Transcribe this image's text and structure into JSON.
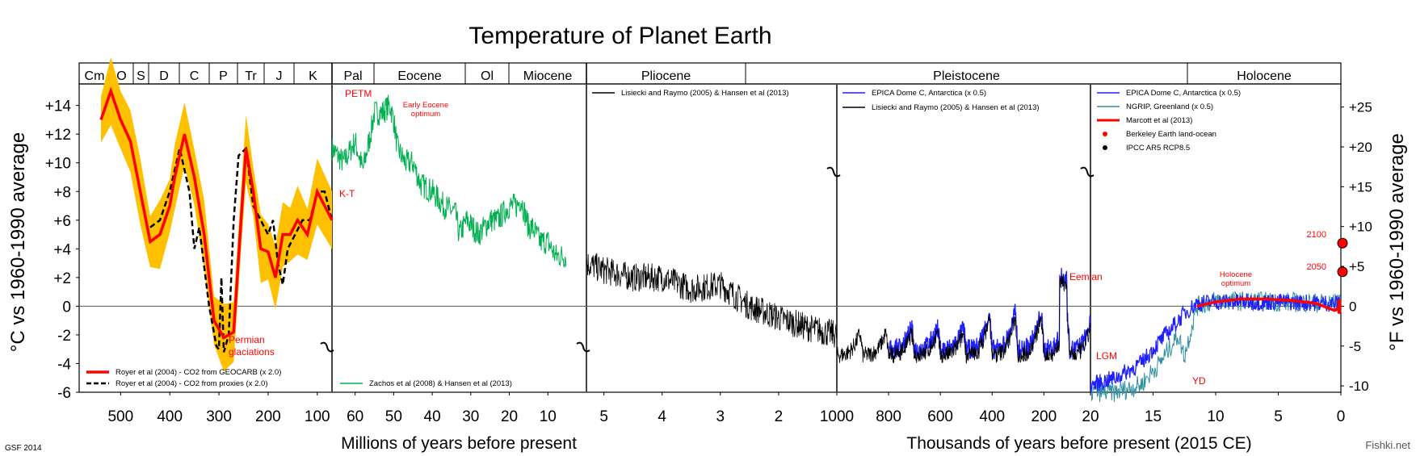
{
  "title": "Temperature of Planet Earth",
  "credit_left": "GSF 2014",
  "watermark": "Fishki.net",
  "axes": {
    "left_label": "°C vs 1960-1990 average",
    "right_label": "°F vs 1960-1990 average",
    "left_ticks": [
      "+14",
      "+12",
      "+10",
      "+8",
      "+6",
      "+4",
      "+2",
      "0",
      "-2",
      "-4",
      "-6"
    ],
    "left_values": [
      14,
      12,
      10,
      8,
      6,
      4,
      2,
      0,
      -2,
      -4,
      -6
    ],
    "right_ticks": [
      "+25",
      "+20",
      "+15",
      "+10",
      "+5",
      "0",
      "-5",
      "-10"
    ],
    "right_values_c": [
      13.889,
      11.111,
      8.333,
      5.556,
      2.778,
      0,
      -2.778,
      -5.556
    ],
    "ylim": [
      -6,
      15.5
    ],
    "xlabel_left": "Millions of years before present",
    "xlabel_right": "Thousands of years before present (2015 CE)"
  },
  "periods": [
    {
      "label": "Cm"
    },
    {
      "label": "O"
    },
    {
      "label": "S"
    },
    {
      "label": "D"
    },
    {
      "label": "C"
    },
    {
      "label": "P"
    },
    {
      "label": "Tr"
    },
    {
      "label": "J"
    },
    {
      "label": "K"
    },
    {
      "label": "Pal"
    },
    {
      "label": "Eocene"
    },
    {
      "label": "Ol"
    },
    {
      "label": "Miocene"
    },
    {
      "label": "Pliocene"
    },
    {
      "label": "Pleistocene"
    },
    {
      "label": "Holocene"
    }
  ],
  "x_ticks": {
    "panel1": [
      "500",
      "400",
      "300",
      "200",
      "100"
    ],
    "panel2": [
      "60",
      "50",
      "40",
      "30",
      "20",
      "10"
    ],
    "panel3": [
      "5",
      "4",
      "3",
      "2",
      "1000"
    ],
    "panel4": [
      "800",
      "600",
      "400",
      "200",
      "20"
    ],
    "panel5": [
      "15",
      "10",
      "5",
      "0"
    ]
  },
  "legends": {
    "panel1": [
      {
        "label": "Royer et al (2004) - CO2 from GEOCARB (x 2.0)",
        "color": "#ff0000",
        "style": "solid"
      },
      {
        "label": "Royer et al (2004) - CO2 from proxies (x 2.0)",
        "color": "#000000",
        "style": "dashed"
      }
    ],
    "panel2": [
      {
        "label": "Zachos et al (2008) & Hansen et al (2013)",
        "color": "#00b050",
        "style": "solid"
      }
    ],
    "panel3": [
      {
        "label": "Lisiecki and Raymo (2005) & Hansen et al (2013)",
        "color": "#000000",
        "style": "solid"
      }
    ],
    "panel4": [
      {
        "label": "EPICA Dome C, Antarctica  (x 0.5)",
        "color": "#2020ff",
        "style": "solid"
      },
      {
        "label": "Lisiecki and Raymo (2005) & Hansen et al (2013)",
        "color": "#000000",
        "style": "solid"
      }
    ],
    "panel5": [
      {
        "label": "EPICA Dome C, Antarctica  (x 0.5)",
        "color": "#2020ff",
        "style": "solid"
      },
      {
        "label": "NGRIP, Greenland (x 0.5)",
        "color": "#3090a0",
        "style": "solid"
      },
      {
        "label": "Marcott et al (2013)",
        "color": "#ff0000",
        "style": "thick"
      },
      {
        "label": "Berkeley Earth land-ocean",
        "color": "#ff0000",
        "style": "dot"
      },
      {
        "label": "IPCC AR5 RCP8.5",
        "color": "#000000",
        "style": "dot"
      }
    ]
  },
  "annotations": {
    "permian": "Permian\nglaciations",
    "petm": "PETM",
    "early_eocene": "Early Eocene\noptimum",
    "kt": "K-T",
    "eemian": "Eemian",
    "lgm": "LGM",
    "yd": "YD",
    "holocene_opt": "Holocene\noptimum",
    "y2100": "2100",
    "y2050": "2050"
  },
  "colors": {
    "red": "#ff0000",
    "orange_band": "#ffc000",
    "green": "#00b050",
    "blue": "#2020ff",
    "teal": "#3090a0",
    "annot_red": "#ff0000"
  },
  "chart_data": {
    "type": "line",
    "title": "Temperature of Planet Earth",
    "ylabel": "°C vs 1960-1990 average",
    "ylim": [
      -6,
      15
    ],
    "series": [
      {
        "name": "Royer et al (2004) - CO2 from GEOCARB (x 2.0)",
        "x_unit": "Ma",
        "x": [
          540,
          520,
          500,
          480,
          460,
          440,
          420,
          400,
          390,
          370,
          350,
          330,
          310,
          290,
          270,
          255,
          245,
          230,
          215,
          200,
          185,
          170,
          155,
          140,
          120,
          100,
          85,
          70
        ],
        "values": [
          13,
          15,
          13,
          11.5,
          8,
          4.5,
          5,
          7,
          9,
          12,
          9,
          5,
          -1,
          -2.2,
          -1.8,
          6,
          11,
          8,
          4,
          3.8,
          2,
          5,
          5,
          6,
          5,
          8,
          7,
          6
        ]
      },
      {
        "name": "Royer et al (2004) - CO2 from proxies (x 2.0)",
        "x_unit": "Ma",
        "x": [
          440,
          420,
          400,
          380,
          360,
          350,
          340,
          320,
          305,
          300,
          295,
          290,
          280,
          270,
          260,
          245,
          230,
          215,
          200,
          190,
          180,
          170,
          160,
          145,
          130,
          115,
          100,
          85,
          70
        ],
        "values": [
          5.5,
          6,
          8,
          11,
          8,
          4,
          5.5,
          0,
          -2.8,
          -3,
          2,
          -3.2,
          -2,
          6,
          10.5,
          11,
          7,
          6,
          5,
          6,
          3,
          1.5,
          4,
          5,
          6,
          6,
          8,
          8,
          6
        ]
      },
      {
        "name": "Zachos et al (2008) & Hansen et al (2013)",
        "x_unit": "Ma",
        "x": [
          66,
          63,
          60,
          58,
          56,
          55,
          53,
          51,
          50,
          49,
          47,
          45,
          43,
          40,
          37,
          34,
          33,
          31,
          28,
          25,
          23,
          20,
          18,
          17,
          15,
          14,
          12,
          10,
          8,
          5.3
        ],
        "values": [
          11,
          10,
          11.5,
          9.5,
          12,
          13.5,
          13.5,
          14,
          13,
          11,
          10,
          10,
          8.5,
          8,
          7,
          6.5,
          5,
          6,
          5,
          6,
          6,
          7,
          7,
          7.5,
          5.5,
          5.5,
          4.5,
          4.5,
          3.5,
          3.5
        ]
      },
      {
        "name": "Lisiecki and Raymo (2005) & Hansen et al (2013)",
        "x_unit": "Ma",
        "x": [
          5.3,
          5,
          4.5,
          4,
          3.5,
          3,
          2.5,
          2,
          1.5,
          1
        ],
        "values": [
          3,
          2.5,
          2,
          2,
          1.2,
          1.5,
          0,
          -0.8,
          -1.5,
          -2
        ]
      },
      {
        "name": "EPICA Dome C, Antarctica (x 0.5)",
        "x_unit": "ka",
        "x": [
          800,
          700,
          600,
          500,
          400,
          340,
          250,
          200,
          130,
          125,
          110,
          80,
          50,
          20
        ],
        "values": [
          -4.5,
          -4,
          -3,
          -4.5,
          0.5,
          -3,
          -4.5,
          -3,
          -4.5,
          2,
          -3,
          -3.5,
          -4,
          -5
        ]
      },
      {
        "name": "Marcott et al (2013)",
        "x_unit": "ka",
        "x": [
          11.5,
          10,
          8,
          6,
          4,
          2,
          0.5,
          0
        ],
        "values": [
          0,
          0.3,
          0.5,
          0.5,
          0.4,
          0.2,
          -0.3,
          0
        ]
      },
      {
        "name": "IPCC AR5 RCP8.5",
        "x_unit": "year",
        "x": [
          2050,
          2100
        ],
        "values": [
          2.4,
          4.4
        ]
      }
    ]
  }
}
